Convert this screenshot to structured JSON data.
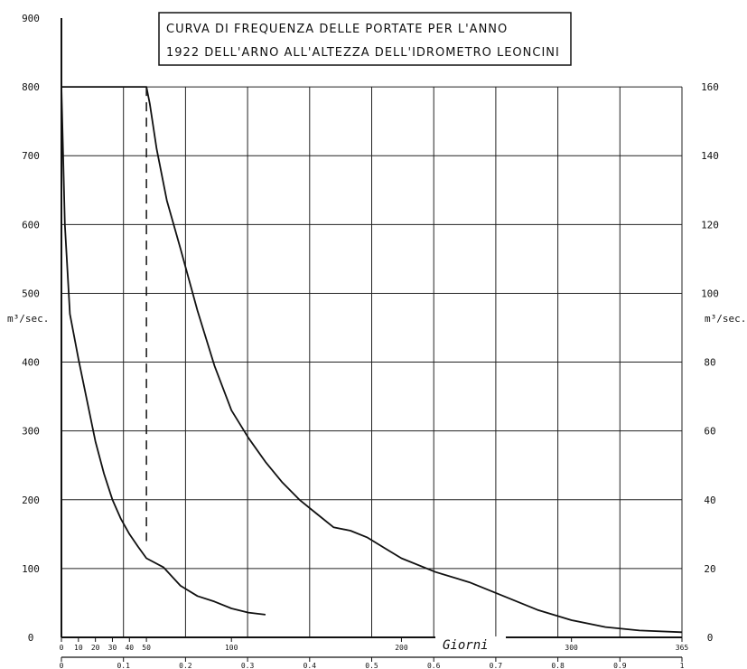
{
  "chart_data": {
    "type": "line",
    "title_line1": "CURVA DI FREQUENZA DELLE PORTATE PER L'ANNO",
    "title_line2": "1922 DELL'ARNO ALL'ALTEZZA DELL'IDROMETRO LEONCINI",
    "xlabel": "Giorni",
    "ylabel_left": "m³/sec.",
    "ylabel_right": "m³/sec.",
    "left_ticks": [
      "0",
      "100",
      "200",
      "300",
      "400",
      "500",
      "600",
      "700",
      "800",
      "900"
    ],
    "right_ticks": [
      "0",
      "20",
      "40",
      "60",
      "80",
      "100",
      "120",
      "140",
      "160"
    ],
    "days_ticks": [
      "0",
      "10",
      "20",
      "30",
      "40",
      "50",
      "100",
      "200",
      "300",
      "365"
    ],
    "fraction_ticks": [
      "0",
      "0.1",
      "0.2",
      "0.3",
      "0.4",
      "0.5",
      "0.6",
      "0.7",
      "0.8",
      "0.9",
      "1"
    ],
    "ylim_left": [
      0,
      900
    ],
    "ylim_right": [
      0,
      180
    ],
    "marker_day": 50,
    "series": [
      {
        "axis": "right",
        "x": [
          0,
          50,
          52,
          56,
          62,
          70,
          80,
          90,
          100,
          110,
          120,
          130,
          140,
          150,
          160,
          170,
          180,
          190,
          200,
          220,
          240,
          260,
          280,
          300,
          320,
          340,
          365
        ],
        "y": [
          160,
          160,
          155,
          142,
          127,
          113,
          95,
          79,
          66,
          58,
          51,
          45,
          40,
          36,
          32,
          31,
          29,
          26,
          23,
          19,
          16,
          12,
          8,
          5,
          3,
          2,
          1.5
        ]
      },
      {
        "axis": "left",
        "x": [
          0,
          1,
          2,
          5,
          10,
          15,
          20,
          25,
          30,
          35,
          40,
          45,
          50,
          60,
          70,
          80,
          90,
          100,
          110,
          120
        ],
        "y": [
          800,
          700,
          600,
          470,
          405,
          345,
          285,
          238,
          200,
          172,
          150,
          132,
          115,
          102,
          75,
          60,
          52,
          42,
          36,
          33
        ]
      }
    ]
  }
}
